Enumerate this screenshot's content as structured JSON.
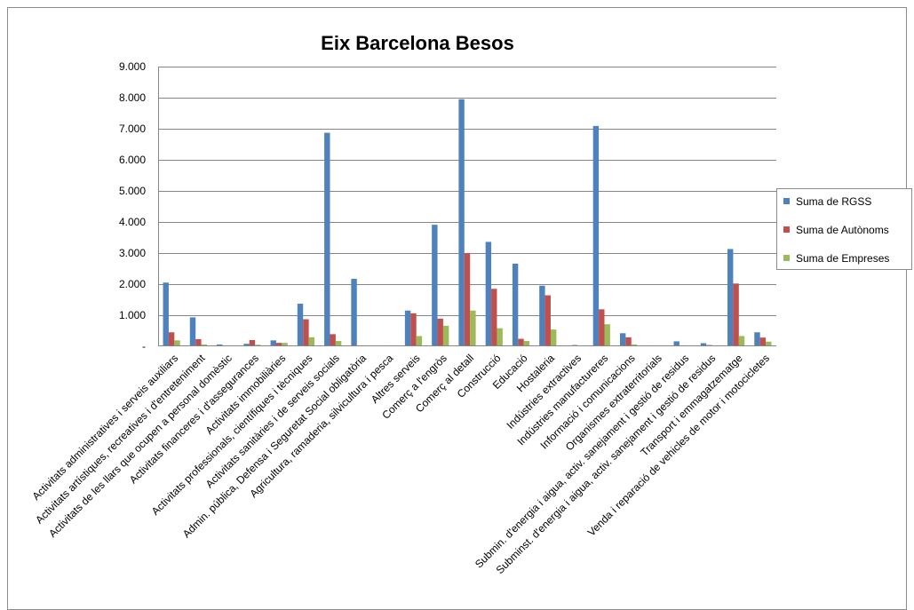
{
  "chart_data": {
    "type": "bar",
    "title": "Eix Barcelona Besos",
    "xlabel": "",
    "ylabel": "",
    "ylim": [
      0,
      9000
    ],
    "yticks": [
      0,
      1000,
      2000,
      3000,
      4000,
      5000,
      6000,
      7000,
      8000,
      9000
    ],
    "ytick_labels": [
      "-",
      "1.000",
      "2.000",
      "3.000",
      "4.000",
      "5.000",
      "6.000",
      "7.000",
      "8.000",
      "9.000"
    ],
    "grid": true,
    "legend_position": "right",
    "categories": [
      "Activitats administratives i serveis auxiliars",
      "Activitats artístiques, recreatives i d'entreteniment",
      "Activitats de les llars que ocupen a personal domèstic",
      "Activitats financeres i d'assegurances",
      "Activitats immobiliàries",
      "Activitats professionals, científiques i tècniques",
      "Activitats sanitàries i de serveis socials",
      "Admin. pública, Defensa i Seguretat Social obligatòria",
      "Agricultura, ramaderia, silvicultura i pesca",
      "Altres serveis",
      "Comerç a l'engròs",
      "Comerç al detall",
      "Construcció",
      "Educació",
      "Hostaleria",
      "Indústries extractives",
      "Indústries manufactureres",
      "Informació i comunicacions",
      "Organismes extraterritorials",
      "Submin. d'energia i aigua, activ. sanejament i gestió de residus",
      "Subminst. d'energia i aigua, activ. sanejament i gestió de residus",
      "Transport i emmagatzematge",
      "Venda i reparació de vehicles de motor i motocicletes"
    ],
    "series": [
      {
        "name": "Suma de RGSS",
        "color": "#4F81BD",
        "values": [
          2050,
          930,
          60,
          80,
          190,
          1370,
          6870,
          2170,
          20,
          1150,
          3910,
          7950,
          3360,
          2660,
          1950,
          10,
          7090,
          420,
          30,
          160,
          100,
          3130,
          450
        ]
      },
      {
        "name": "Suma de Autònoms",
        "color": "#C0504D",
        "values": [
          450,
          230,
          30,
          200,
          110,
          870,
          390,
          30,
          30,
          1060,
          890,
          3000,
          1850,
          240,
          1640,
          40,
          1190,
          290,
          20,
          30,
          40,
          2020,
          280
        ]
      },
      {
        "name": "Suma de Empreses",
        "color": "#9BBB59",
        "values": [
          190,
          60,
          10,
          50,
          110,
          290,
          170,
          10,
          10,
          330,
          660,
          1150,
          580,
          170,
          540,
          10,
          710,
          60,
          10,
          10,
          20,
          330,
          150
        ]
      }
    ]
  }
}
